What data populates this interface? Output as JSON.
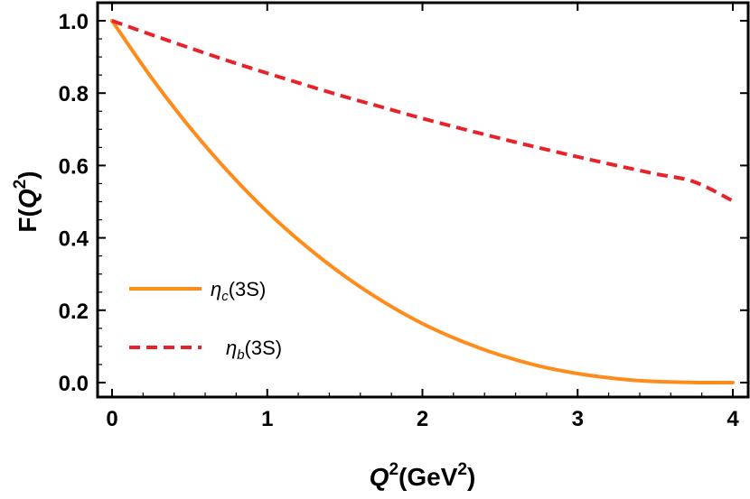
{
  "chart_data": {
    "type": "line",
    "title": "",
    "xlabel": {
      "parts": [
        {
          "text": "Q",
          "style": "italic"
        },
        {
          "text": "2",
          "style": "sup"
        },
        {
          "text": "(GeV",
          "style": "normal"
        },
        {
          "text": "2",
          "style": "sup"
        },
        {
          "text": ")",
          "style": "normal"
        }
      ]
    },
    "ylabel": {
      "parts": [
        {
          "text": "F(",
          "style": "normal"
        },
        {
          "text": "Q",
          "style": "italic"
        },
        {
          "text": "2",
          "style": "sup"
        },
        {
          "text": ")",
          "style": "normal"
        }
      ]
    },
    "xlim": [
      0,
      4
    ],
    "ylim": [
      0,
      1
    ],
    "xticks": [
      0,
      1,
      2,
      3,
      4
    ],
    "xtick_labels": [
      "0",
      "1",
      "2",
      "3",
      "4"
    ],
    "yticks": [
      0.0,
      0.2,
      0.4,
      0.6,
      0.8,
      1.0
    ],
    "ytick_labels": [
      "0.0",
      "0.2",
      "0.4",
      "0.6",
      "0.8",
      "1.0"
    ],
    "grid": false,
    "legend_position": "middle-left",
    "x": [
      0,
      0.25,
      0.5,
      0.75,
      1.0,
      1.25,
      1.5,
      1.75,
      2.0,
      2.25,
      2.5,
      2.75,
      3.0,
      3.25,
      3.5,
      3.75,
      4.0
    ],
    "series": [
      {
        "name": "ηc(3S)",
        "legend": [
          {
            "text": "η",
            "style": "italic"
          },
          {
            "text": "c",
            "style": "sub-italic"
          },
          {
            "text": "(3S)",
            "style": "normal"
          }
        ],
        "color": "#FF8C1A",
        "dash": "solid",
        "values": [
          1.0,
          0.845,
          0.706,
          0.582,
          0.472,
          0.377,
          0.294,
          0.223,
          0.163,
          0.115,
          0.076,
          0.046,
          0.025,
          0.011,
          0.003,
          0.0004,
          0.0
        ]
      },
      {
        "name": "ηb(3S)",
        "legend": [
          {
            "text": "η",
            "style": "italic"
          },
          {
            "text": "b",
            "style": "sub-italic"
          },
          {
            "text": "(3S)",
            "style": "normal"
          }
        ],
        "color": "#E8222B",
        "dash": "dashed",
        "values": [
          1.0,
          0.962,
          0.925,
          0.889,
          0.855,
          0.822,
          0.79,
          0.76,
          0.73,
          0.702,
          0.675,
          0.649,
          0.624,
          0.6,
          0.577,
          0.555,
          0.502
        ]
      }
    ]
  }
}
